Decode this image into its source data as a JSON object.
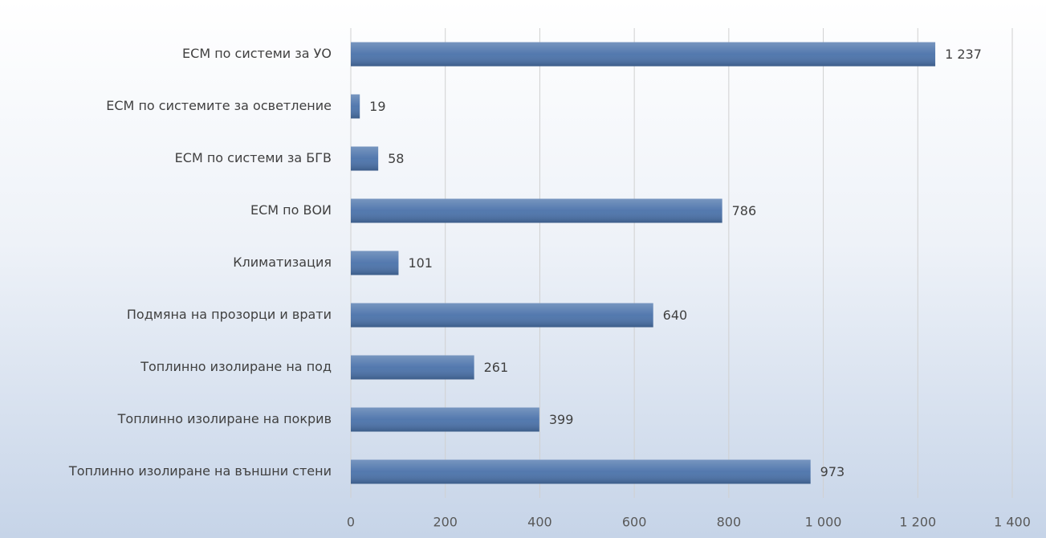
{
  "chart_data": {
    "type": "barh",
    "categories": [
      "ЕСМ по системи за УО",
      "ЕСМ по системите за осветление",
      "ЕСМ по системи за БГВ",
      "ЕСМ по ВОИ",
      "Климатизация",
      "Подмяна на прозорци и врати",
      "Топлинно изолиране на под",
      "Топлинно изолиране на покрив",
      "Топлинно изолиране на външни стени"
    ],
    "values": [
      1237,
      19,
      58,
      786,
      101,
      640,
      261,
      399,
      973
    ],
    "value_labels": [
      "1 237",
      "19",
      "58",
      "786",
      "101",
      "640",
      "261",
      "399",
      "973"
    ],
    "color": "#4a72aa",
    "xlim": [
      0,
      1400
    ],
    "xticks": [
      0,
      200,
      400,
      600,
      800,
      {
        "value": 1000,
        "label": "1 000"
      },
      {
        "value": 1200,
        "label": "1 200"
      },
      {
        "value": 1400,
        "label": "1 400"
      }
    ],
    "grid": true
  }
}
